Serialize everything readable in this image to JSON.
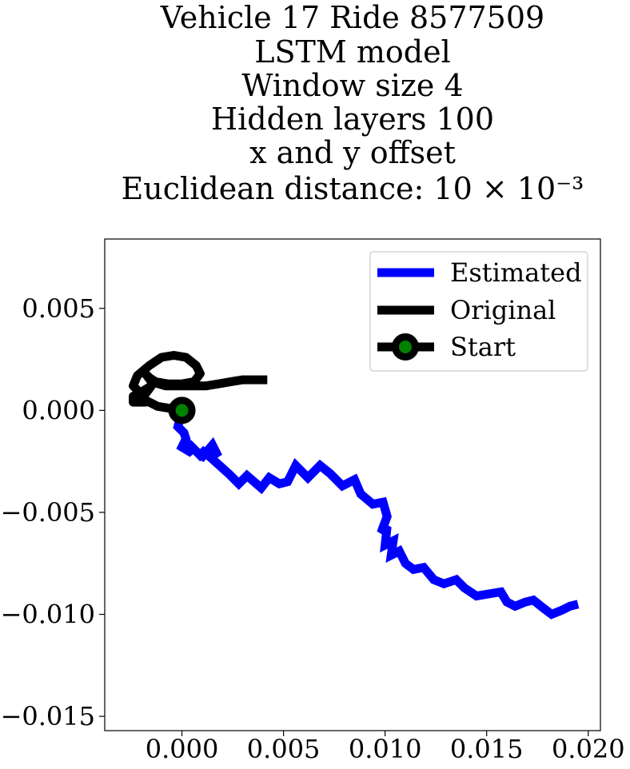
{
  "chart_data": {
    "type": "line",
    "title_lines": [
      "Vehicle 17 Ride 8577509",
      "LSTM model",
      "Window size 4",
      "Hidden layers 100",
      "x and y offset",
      "Euclidean distance: 10 × 10⁻³"
    ],
    "xlabel": "",
    "ylabel": "",
    "xlim": [
      -0.0038,
      0.0206
    ],
    "ylim": [
      -0.0157,
      0.0084
    ],
    "x_ticks": [
      0.0,
      0.005,
      0.01,
      0.015,
      0.02
    ],
    "x_tick_labels": [
      "0.000",
      "0.005",
      "0.010",
      "0.015",
      "0.020"
    ],
    "y_ticks": [
      0.005,
      0.0,
      -0.005,
      -0.01,
      -0.015
    ],
    "y_tick_labels": [
      "0.005",
      "0.000",
      "−0.005",
      "−0.010",
      "−0.015"
    ],
    "grid": false,
    "legend_position": "top-right",
    "series": [
      {
        "name": "Estimated",
        "color": "#0000ff",
        "x": [
          0.0,
          -0.0002,
          0.0001,
          0.0002,
          0.0,
          0.0005,
          0.0003,
          0.0009,
          0.0012,
          0.0009,
          0.0015,
          0.0017,
          0.0014,
          0.0023,
          0.0028,
          0.0032,
          0.0039,
          0.0043,
          0.0048,
          0.0052,
          0.0056,
          0.0062,
          0.0068,
          0.0073,
          0.0079,
          0.0085,
          0.0088,
          0.0094,
          0.0099,
          0.0101,
          0.0098,
          0.0101,
          0.01,
          0.0104,
          0.0103,
          0.0107,
          0.011,
          0.0114,
          0.0119,
          0.0124,
          0.0129,
          0.0135,
          0.0139,
          0.0145,
          0.0151,
          0.0157,
          0.016,
          0.0164,
          0.0169,
          0.0173,
          0.0178,
          0.0182,
          0.0187,
          0.0191,
          0.0195
        ],
        "y": [
          0.0,
          -0.0008,
          -0.0011,
          -0.0014,
          -0.0018,
          -0.0021,
          -0.0016,
          -0.0022,
          -0.0019,
          -0.0024,
          -0.0017,
          -0.0021,
          -0.0023,
          -0.0031,
          -0.0036,
          -0.0032,
          -0.0038,
          -0.0033,
          -0.0036,
          -0.0035,
          -0.0027,
          -0.0033,
          -0.0027,
          -0.0031,
          -0.0037,
          -0.0034,
          -0.0041,
          -0.0046,
          -0.0045,
          -0.0052,
          -0.006,
          -0.0057,
          -0.0066,
          -0.0064,
          -0.0071,
          -0.0069,
          -0.0075,
          -0.0078,
          -0.0077,
          -0.0083,
          -0.0085,
          -0.0083,
          -0.0087,
          -0.0091,
          -0.009,
          -0.0089,
          -0.0094,
          -0.0096,
          -0.0094,
          -0.0093,
          -0.0097,
          -0.01,
          -0.0098,
          -0.0096,
          -0.0095
        ]
      },
      {
        "name": "Original",
        "color": "#000000",
        "x": [
          0.0,
          -0.0006,
          -0.0012,
          -0.0018,
          -0.002,
          -0.0015,
          -0.0018,
          -0.0024,
          -0.0024,
          -0.0018,
          -0.002,
          -0.0024,
          -0.0022,
          -0.0016,
          -0.001,
          -0.0004,
          0.0002,
          0.0007,
          0.0009,
          0.0006,
          0.0,
          -0.0007,
          -0.0013,
          -0.0016,
          -0.0018,
          -0.0015,
          -0.0008,
          0.0,
          0.0006,
          0.0012,
          0.0018,
          0.0024,
          0.003,
          0.0036,
          0.0042
        ],
        "y": [
          0.0,
          0.0001,
          0.0002,
          0.0005,
          0.0009,
          0.0012,
          0.0008,
          0.0007,
          0.0004,
          0.0004,
          0.0008,
          0.0012,
          0.0017,
          0.0022,
          0.0026,
          0.0027,
          0.0026,
          0.0022,
          0.0018,
          0.0014,
          0.0013,
          0.0013,
          0.0014,
          0.0016,
          0.0018,
          0.0014,
          0.0012,
          0.0012,
          0.0012,
          0.0012,
          0.0013,
          0.0014,
          0.0015,
          0.0015,
          0.0015
        ]
      },
      {
        "name": "Start",
        "color": "#000000",
        "marker_face_color": "#008000",
        "x": [
          0.0
        ],
        "y": [
          0.0
        ]
      }
    ]
  }
}
